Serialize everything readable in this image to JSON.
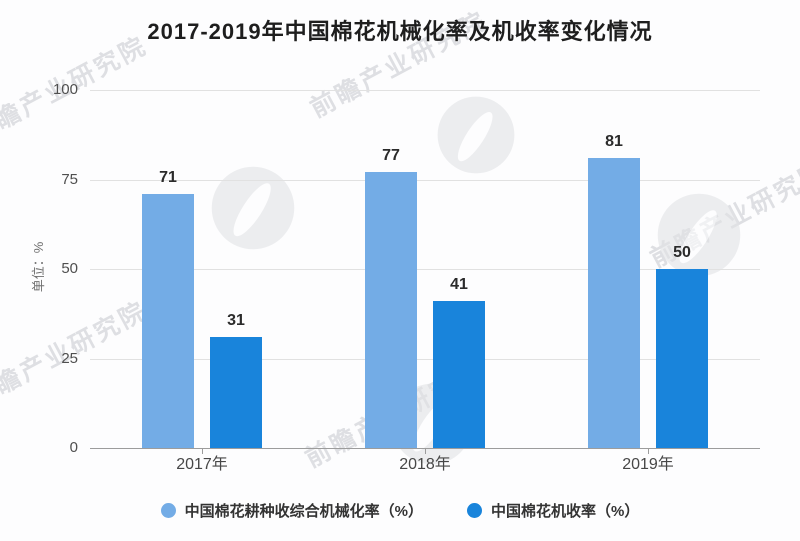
{
  "title": "2017-2019年中国棉花机械化率及机收率变化情况",
  "watermark": {
    "text": "前瞻产业研究院",
    "logo": "qianzhan-circle-logo"
  },
  "chart_data": {
    "type": "bar",
    "title": "2017-2019年中国棉花机械化率及机收率变化情况",
    "categories": [
      "2017年",
      "2018年",
      "2019年"
    ],
    "series": [
      {
        "name": "中国棉花耕种收综合机械化率（%）",
        "color": "#73ACE6",
        "values": [
          71,
          77,
          81
        ]
      },
      {
        "name": "中国棉花机收率（%）",
        "color": "#1984DB",
        "values": [
          31,
          41,
          50
        ]
      }
    ],
    "ylabel": "单位：%",
    "ylim": [
      0,
      100
    ],
    "yticks": [
      0,
      25,
      50,
      75,
      100
    ],
    "grid": true,
    "legend_position": "bottom",
    "value_labels": true
  }
}
